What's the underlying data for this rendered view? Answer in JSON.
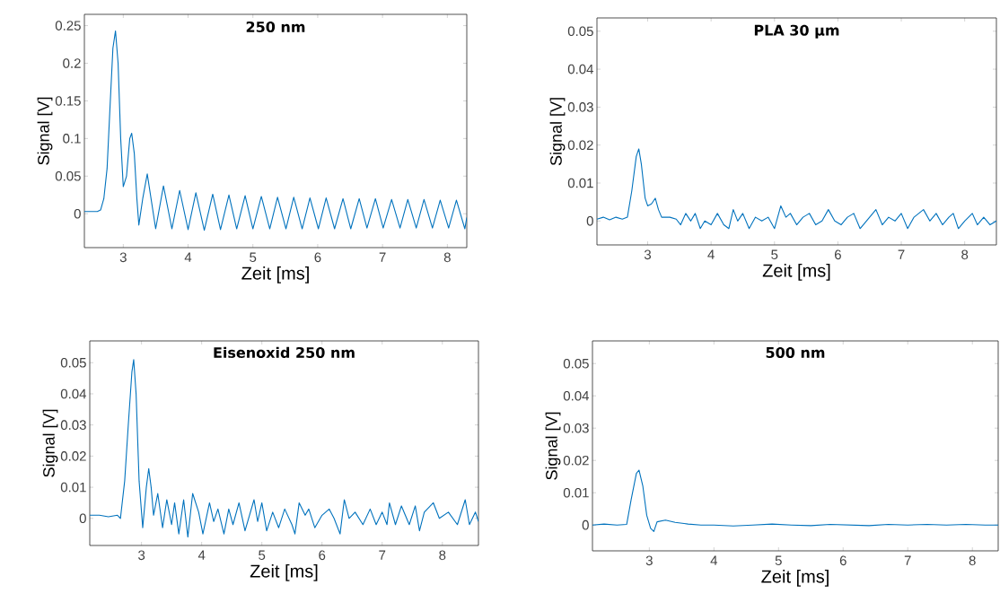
{
  "chart_data": [
    {
      "type": "line",
      "title": "250 nm",
      "xlabel": "Zeit [ms]",
      "ylabel": "Signal [V]",
      "xlim": [
        2.4,
        8.3
      ],
      "ylim": [
        -0.045,
        0.265
      ],
      "xticks": [
        3,
        4,
        5,
        6,
        7,
        8
      ],
      "yticks": [
        0,
        0.05,
        0.1,
        0.15,
        0.2,
        0.25
      ],
      "series": [
        {
          "color": "#0072bd",
          "x": [
            2.4,
            2.5,
            2.6,
            2.65,
            2.7,
            2.75,
            2.8,
            2.84,
            2.88,
            2.92,
            2.96,
            3.0,
            3.05,
            3.1,
            3.13,
            3.17,
            3.21,
            3.24,
            3.3,
            3.37,
            3.5,
            3.62,
            3.75,
            3.87,
            4.0,
            4.12,
            4.25,
            4.38,
            4.5,
            4.63,
            4.75,
            4.88,
            5.0,
            5.13,
            5.26,
            5.38,
            5.51,
            5.63,
            5.76,
            5.88,
            6.01,
            6.13,
            6.26,
            6.39,
            6.51,
            6.64,
            6.76,
            6.89,
            7.01,
            7.14,
            7.27,
            7.39,
            7.52,
            7.64,
            7.77,
            7.89,
            8.02,
            8.14,
            8.27,
            8.3
          ],
          "values": [
            0.003,
            0.003,
            0.003,
            0.005,
            0.02,
            0.06,
            0.15,
            0.22,
            0.243,
            0.2,
            0.1,
            0.036,
            0.05,
            0.1,
            0.107,
            0.08,
            0.02,
            -0.015,
            0.02,
            0.053,
            -0.02,
            0.037,
            -0.02,
            0.031,
            -0.021,
            0.028,
            -0.022,
            0.026,
            -0.021,
            0.025,
            -0.02,
            0.024,
            -0.02,
            0.023,
            -0.02,
            0.022,
            -0.02,
            0.022,
            -0.02,
            0.021,
            -0.02,
            0.021,
            -0.02,
            0.02,
            -0.02,
            0.02,
            -0.019,
            0.02,
            -0.019,
            0.019,
            -0.019,
            0.019,
            -0.019,
            0.019,
            -0.019,
            0.018,
            -0.019,
            0.018,
            -0.02,
            -0.005
          ]
        }
      ]
    },
    {
      "type": "line",
      "title": "PLA 30 µm",
      "xlabel": "Zeit [ms]",
      "ylabel": "Signal [V]",
      "xlim": [
        2.2,
        8.5
      ],
      "ylim": [
        -0.0063,
        0.0535
      ],
      "xticks": [
        3,
        4,
        5,
        6,
        7,
        8
      ],
      "yticks": [
        0,
        0.01,
        0.02,
        0.03,
        0.04,
        0.05
      ],
      "series": [
        {
          "color": "#0072bd",
          "x": [
            2.2,
            2.3,
            2.4,
            2.5,
            2.6,
            2.68,
            2.75,
            2.82,
            2.86,
            2.9,
            2.96,
            3.0,
            3.06,
            3.12,
            3.17,
            3.22,
            3.35,
            3.45,
            3.52,
            3.6,
            3.68,
            3.75,
            3.83,
            3.9,
            4.0,
            4.1,
            4.2,
            4.28,
            4.35,
            4.42,
            4.5,
            4.6,
            4.7,
            4.8,
            4.9,
            5.0,
            5.1,
            5.18,
            5.25,
            5.35,
            5.45,
            5.55,
            5.65,
            5.75,
            5.85,
            5.95,
            6.05,
            6.15,
            6.25,
            6.35,
            6.45,
            6.6,
            6.7,
            6.8,
            6.9,
            7.0,
            7.1,
            7.2,
            7.35,
            7.45,
            7.55,
            7.65,
            7.75,
            7.82,
            7.9,
            8.0,
            8.12,
            8.2,
            8.3,
            8.4,
            8.5
          ],
          "values": [
            0.0005,
            0.001,
            0.0003,
            0.001,
            0.0005,
            0.001,
            0.008,
            0.017,
            0.019,
            0.015,
            0.006,
            0.004,
            0.0045,
            0.006,
            0.003,
            0.001,
            0.001,
            0.0005,
            -0.001,
            0.002,
            0.0,
            0.002,
            -0.002,
            0.0,
            -0.001,
            0.002,
            -0.001,
            -0.002,
            0.003,
            0.0,
            0.002,
            -0.002,
            0.001,
            0.0,
            0.001,
            -0.002,
            0.004,
            0.001,
            0.002,
            -0.001,
            0.001,
            0.002,
            -0.001,
            0.0,
            0.003,
            0.0,
            -0.001,
            0.001,
            0.002,
            -0.002,
            0.0,
            0.003,
            -0.001,
            0.001,
            0.0,
            0.002,
            -0.002,
            0.001,
            0.003,
            0.0,
            0.002,
            -0.001,
            0.001,
            0.002,
            -0.002,
            0.0,
            0.002,
            -0.001,
            0.001,
            -0.001,
            0.0
          ]
        }
      ]
    },
    {
      "type": "line",
      "title": "Eisenoxid 250 nm",
      "xlabel": "Zeit [ms]",
      "ylabel": "Signal [V]",
      "xlim": [
        2.14,
        8.6
      ],
      "ylim": [
        -0.0087,
        0.057
      ],
      "xticks": [
        3,
        4,
        5,
        6,
        7,
        8
      ],
      "yticks": [
        0,
        0.01,
        0.02,
        0.03,
        0.04,
        0.05
      ],
      "series": [
        {
          "color": "#0072bd",
          "x": [
            2.14,
            2.3,
            2.45,
            2.6,
            2.65,
            2.72,
            2.78,
            2.84,
            2.87,
            2.91,
            2.96,
            3.02,
            3.08,
            3.12,
            3.16,
            3.2,
            3.27,
            3.35,
            3.42,
            3.5,
            3.55,
            3.62,
            3.7,
            3.77,
            3.85,
            3.95,
            4.02,
            4.13,
            4.2,
            4.27,
            4.37,
            4.45,
            4.52,
            4.62,
            4.72,
            4.87,
            4.93,
            5.0,
            5.08,
            5.18,
            5.28,
            5.38,
            5.5,
            5.55,
            5.62,
            5.72,
            5.78,
            5.88,
            6.0,
            6.12,
            6.2,
            6.3,
            6.37,
            6.45,
            6.55,
            6.68,
            6.8,
            6.9,
            7.0,
            7.08,
            7.12,
            7.22,
            7.32,
            7.45,
            7.55,
            7.62,
            7.7,
            7.85,
            7.95,
            8.1,
            8.25,
            8.38,
            8.45,
            8.55,
            8.6
          ],
          "values": [
            0.001,
            0.001,
            0.0005,
            0.001,
            0.0,
            0.012,
            0.03,
            0.047,
            0.051,
            0.04,
            0.012,
            -0.003,
            0.01,
            0.016,
            0.01,
            0.001,
            0.008,
            -0.003,
            0.006,
            -0.002,
            0.005,
            -0.005,
            0.006,
            -0.006,
            0.008,
            0.002,
            -0.005,
            0.005,
            -0.001,
            0.003,
            -0.005,
            0.003,
            -0.002,
            0.005,
            -0.004,
            0.006,
            -0.001,
            0.005,
            -0.004,
            0.002,
            -0.003,
            0.003,
            -0.002,
            -0.005,
            0.005,
            0.001,
            0.003,
            -0.003,
            0.001,
            0.003,
            0.0,
            -0.005,
            0.006,
            0.0,
            0.002,
            -0.002,
            0.003,
            -0.002,
            0.002,
            -0.002,
            0.005,
            -0.002,
            0.004,
            -0.002,
            0.004,
            -0.004,
            0.002,
            0.005,
            0.0,
            0.002,
            -0.002,
            0.006,
            -0.002,
            0.002,
            -0.001
          ]
        }
      ]
    },
    {
      "type": "line",
      "title": "500 nm",
      "xlabel": "Zeit [ms]",
      "ylabel": "Signal [V]",
      "xlim": [
        2.12,
        8.4
      ],
      "ylim": [
        -0.008,
        0.057
      ],
      "xticks": [
        3,
        4,
        5,
        6,
        7,
        8
      ],
      "yticks": [
        0,
        0.01,
        0.02,
        0.03,
        0.04,
        0.05
      ],
      "series": [
        {
          "color": "#0072bd",
          "x": [
            2.12,
            2.3,
            2.5,
            2.65,
            2.72,
            2.8,
            2.84,
            2.9,
            2.96,
            3.02,
            3.07,
            3.12,
            3.25,
            3.4,
            3.6,
            3.8,
            4.0,
            4.3,
            4.6,
            4.9,
            5.2,
            5.5,
            5.8,
            6.1,
            6.4,
            6.7,
            7.0,
            7.3,
            7.6,
            7.9,
            8.2,
            8.4
          ],
          "values": [
            0.0,
            0.0003,
            0.0,
            0.0002,
            0.008,
            0.016,
            0.017,
            0.012,
            0.003,
            -0.001,
            -0.002,
            0.001,
            0.0015,
            0.0008,
            0.0003,
            0.0,
            0.0,
            -0.0003,
            0.0,
            0.0003,
            0.0,
            -0.0002,
            0.0002,
            0.0,
            -0.0002,
            0.0002,
            0.0,
            0.0002,
            0.0,
            0.0002,
            0.0,
            0.0
          ]
        }
      ]
    }
  ]
}
